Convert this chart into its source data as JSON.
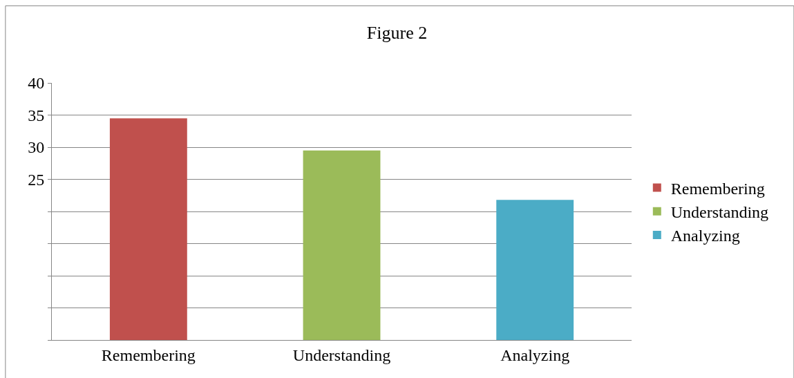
{
  "chart_data": {
    "type": "bar",
    "title": "Figure 2",
    "categories": [
      "Remembering",
      "Understanding",
      "Analyzing"
    ],
    "series": [
      {
        "name": "Remembering",
        "color": "#c0504d",
        "values": [
          34.5,
          null,
          null
        ]
      },
      {
        "name": "Understanding",
        "color": "#9bbb59",
        "values": [
          null,
          29.5,
          null
        ]
      },
      {
        "name": "Analyzing",
        "color": "#4bacc6",
        "values": [
          null,
          null,
          21.8
        ]
      }
    ],
    "ylim": [
      0,
      40
    ],
    "yticks": [
      {
        "value": 0,
        "label": null
      },
      {
        "value": 5,
        "label": null
      },
      {
        "value": 10,
        "label": null
      },
      {
        "value": 15,
        "label": null
      },
      {
        "value": 20,
        "label": null
      },
      25,
      30,
      35,
      40
    ],
    "grid": "y",
    "legend": "right"
  }
}
